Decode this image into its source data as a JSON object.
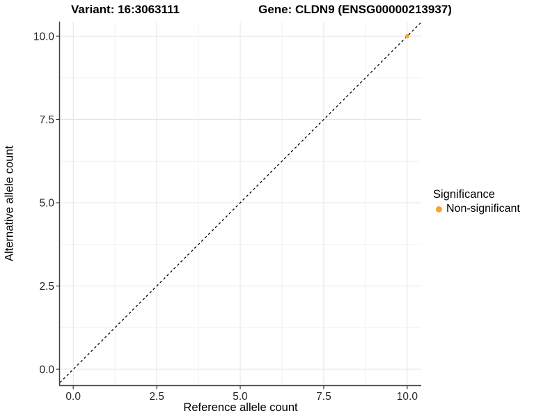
{
  "header": {
    "title_left": "Variant: 16:3063111",
    "title_right": "Gene: CLDN9 (ENSG00000213937)"
  },
  "colors": {
    "point": "#F9A32B",
    "axis_line": "#404040",
    "tick_mark": "#333333",
    "tick_label": "#262626",
    "grid_major": "#e4e4e4",
    "grid_minor": "#f1f1f1",
    "reference_line": "#000000",
    "background": "#ffffff"
  },
  "chart_data": {
    "type": "scatter",
    "titles": [
      "Variant: 16:3063111",
      "Gene: CLDN9 (ENSG00000213937)"
    ],
    "xlabel": "Reference allele count",
    "ylabel": "Alternative allele count",
    "xlim": [
      -0.4,
      10.42
    ],
    "ylim": [
      -0.48,
      10.44
    ],
    "x_ticks": {
      "values": [
        0,
        2.5,
        5,
        7.5,
        10
      ],
      "labels": [
        "0.0",
        "2.5",
        "5.0",
        "7.5",
        "10.0"
      ]
    },
    "y_ticks": {
      "values": [
        0,
        2.5,
        5,
        7.5,
        10
      ],
      "labels": [
        "0.0",
        "2.5",
        "5.0",
        "7.5",
        "10.0"
      ]
    },
    "minor_ticks": [
      1.25,
      3.75,
      6.25,
      8.75
    ],
    "grid": "major+minor",
    "series": [
      {
        "name": "Non-significant",
        "color": "#F9A32B",
        "points": [
          {
            "x": 10,
            "y": 10
          }
        ]
      }
    ],
    "reference_line": {
      "type": "identity",
      "slope": 1,
      "intercept": 0,
      "style": "dashed",
      "color": "#000000"
    },
    "legend": {
      "title": "Significance",
      "position": "right",
      "entries": [
        {
          "label": "Non-significant",
          "color": "#F9A32B"
        }
      ]
    }
  }
}
